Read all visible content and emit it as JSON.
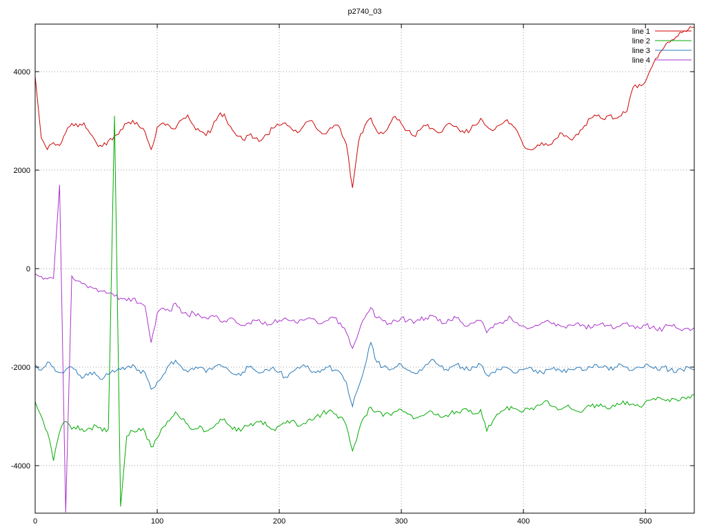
{
  "page": {
    "title": "p2740_03"
  },
  "chart_data": {
    "type": "line",
    "title": "p2740_03",
    "xlabel": "",
    "ylabel": "",
    "xlim": [
      0,
      540
    ],
    "ylim": [
      -4965,
      4965
    ],
    "xticks": [
      0,
      100,
      200,
      300,
      400,
      500
    ],
    "yticks": [
      -4000,
      -2000,
      0,
      2000,
      4000
    ],
    "grid": true,
    "legend_position": "top-right",
    "background": "#ffffff",
    "x_start": 0,
    "x_step": 5,
    "series": [
      {
        "name": "line 1",
        "color": "#cc0000",
        "values": [
          3900,
          2650,
          2420,
          2560,
          2500,
          2760,
          2950,
          2880,
          2960,
          2740,
          2560,
          2480,
          2600,
          2700,
          2820,
          2950,
          3010,
          2890,
          2780,
          2420,
          2870,
          2960,
          2900,
          2840,
          3020,
          3120,
          2900,
          2790,
          2700,
          2860,
          3100,
          3140,
          2890,
          2700,
          2620,
          2710,
          2650,
          2600,
          2720,
          2850,
          2910,
          2960,
          2840,
          2760,
          2900,
          3000,
          2860,
          2740,
          2800,
          2910,
          2840,
          2520,
          1640,
          2580,
          2900,
          3060,
          2790,
          2740,
          2910,
          3090,
          2940,
          2800,
          2700,
          2810,
          2900,
          2850,
          2760,
          2860,
          2950,
          2890,
          2800,
          2760,
          2910,
          3050,
          2890,
          2800,
          2910,
          3000,
          2940,
          2790,
          2500,
          2420,
          2460,
          2560,
          2500,
          2610,
          2760,
          2700,
          2610,
          2720,
          2900,
          3050,
          3100,
          3040,
          3110,
          3050,
          3100,
          3200,
          3690,
          3740,
          3800,
          4080,
          4280,
          4480,
          4600,
          4700,
          4790,
          4850,
          4900
        ]
      },
      {
        "name": "line 2",
        "color": "#00aa00",
        "values": [
          -2700,
          -3000,
          -3320,
          -3900,
          -3320,
          -3100,
          -3260,
          -3190,
          -3310,
          -3240,
          -3190,
          -3300,
          -3260,
          3100,
          -4830,
          -3400,
          -3300,
          -3240,
          -3310,
          -3620,
          -3440,
          -3210,
          -3090,
          -2910,
          -3060,
          -3160,
          -3260,
          -3190,
          -3300,
          -3240,
          -3140,
          -3050,
          -3200,
          -3300,
          -3250,
          -3190,
          -3140,
          -3090,
          -3200,
          -3260,
          -3190,
          -3140,
          -3090,
          -3200,
          -3140,
          -3050,
          -3000,
          -2950,
          -2900,
          -2950,
          -3010,
          -3190,
          -3700,
          -3300,
          -3000,
          -2810,
          -2900,
          -3000,
          -2950,
          -2900,
          -2860,
          -2950,
          -3050,
          -3000,
          -2950,
          -2900,
          -2950,
          -3000,
          -2950,
          -2900,
          -2860,
          -2900,
          -2950,
          -2860,
          -3300,
          -3090,
          -2950,
          -2860,
          -2800,
          -2860,
          -2900,
          -2860,
          -2800,
          -2760,
          -2690,
          -2800,
          -2860,
          -2800,
          -2860,
          -2900,
          -2850,
          -2800,
          -2760,
          -2800,
          -2850,
          -2800,
          -2750,
          -2700,
          -2750,
          -2800,
          -2700,
          -2660,
          -2610,
          -2660,
          -2700,
          -2650,
          -2610,
          -2600,
          -2560
        ]
      },
      {
        "name": "line 3",
        "color": "#2878b8",
        "values": [
          -1950,
          -2060,
          -1900,
          -2000,
          -2110,
          -2050,
          -2000,
          -2150,
          -2200,
          -2100,
          -2160,
          -2250,
          -2150,
          -2100,
          -2050,
          -2000,
          -1950,
          -2060,
          -2110,
          -2450,
          -2300,
          -2150,
          -1950,
          -1860,
          -2000,
          -2100,
          -2050,
          -2000,
          -2110,
          -2050,
          -1950,
          -2000,
          -2100,
          -2160,
          -2100,
          -2000,
          -2060,
          -2110,
          -2050,
          -2000,
          -2100,
          -2200,
          -2100,
          -2000,
          -1950,
          -2060,
          -2110,
          -2050,
          -2000,
          -2060,
          -2110,
          -2300,
          -2800,
          -2400,
          -2000,
          -1500,
          -1900,
          -2000,
          -2060,
          -2000,
          -1950,
          -2060,
          -2110,
          -2050,
          -1950,
          -1840,
          -1950,
          -2060,
          -2000,
          -1950,
          -2000,
          -2060,
          -2000,
          -1950,
          -2160,
          -2100,
          -2050,
          -2000,
          -2060,
          -2110,
          -2050,
          -2000,
          -2060,
          -2110,
          -2050,
          -2000,
          -2060,
          -2110,
          -2050,
          -2000,
          -2060,
          -2000,
          -1950,
          -2000,
          -2060,
          -2000,
          -1950,
          -2000,
          -2060,
          -2000,
          -1950,
          -2000,
          -2060,
          -2000,
          -2060,
          -2110,
          -2050,
          -2000,
          -2060
        ]
      },
      {
        "name": "line 4",
        "color": "#aa33cc",
        "values": [
          -100,
          -160,
          -210,
          -200,
          1700,
          -4950,
          -150,
          -250,
          -300,
          -360,
          -400,
          -460,
          -500,
          -560,
          -600,
          -650,
          -610,
          -700,
          -760,
          -1500,
          -900,
          -800,
          -860,
          -700,
          -900,
          -950,
          -900,
          -960,
          -1000,
          -950,
          -1000,
          -1060,
          -1000,
          -1100,
          -1150,
          -1100,
          -1050,
          -1100,
          -1150,
          -1100,
          -1050,
          -1000,
          -1060,
          -1110,
          -1050,
          -1000,
          -1060,
          -1110,
          -1050,
          -1000,
          -1100,
          -1300,
          -1620,
          -1300,
          -1000,
          -790,
          -1000,
          -1060,
          -1110,
          -1050,
          -1000,
          -1060,
          -1110,
          -1050,
          -1000,
          -950,
          -1060,
          -1110,
          -1050,
          -1000,
          -1100,
          -1160,
          -1100,
          -1050,
          -1300,
          -1200,
          -1100,
          -1050,
          -1000,
          -1100,
          -1160,
          -1210,
          -1150,
          -1100,
          -1050,
          -1100,
          -1160,
          -1210,
          -1150,
          -1100,
          -1160,
          -1210,
          -1150,
          -1100,
          -1160,
          -1210,
          -1150,
          -1100,
          -1160,
          -1210,
          -1150,
          -1200,
          -1260,
          -1200,
          -1150,
          -1200,
          -1260,
          -1210,
          -1200
        ]
      }
    ]
  }
}
